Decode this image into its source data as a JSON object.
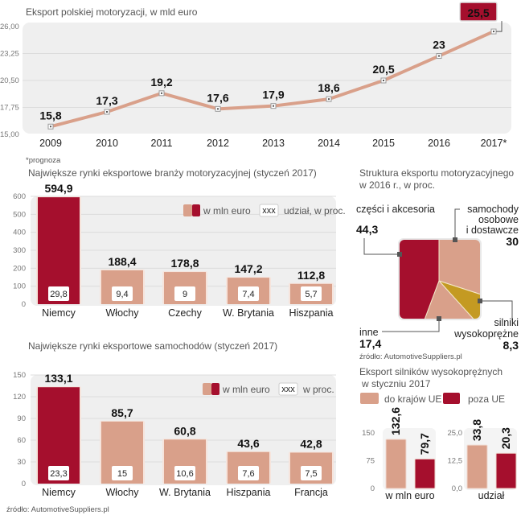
{
  "colors": {
    "dark_red": "#a50f2d",
    "salmon": "#d9a08a",
    "gold": "#c49a22",
    "panel": "#efefef"
  },
  "chart_data": [
    {
      "type": "line",
      "title": "Eksport polskiej motoryzacji, w mld euro",
      "categories": [
        "2009",
        "2010",
        "2011",
        "2012",
        "2013",
        "2014",
        "2015",
        "2016",
        "2017*"
      ],
      "values": [
        15.8,
        17.3,
        19.2,
        17.6,
        17.9,
        18.6,
        20.5,
        23,
        25.5
      ],
      "value_labels": [
        "15,8",
        "17,3",
        "19,2",
        "17,6",
        "17,9",
        "18,6",
        "20,5",
        "23",
        "25,5"
      ],
      "yticks": [
        "15,00",
        "17,75",
        "20,50",
        "23,25",
        "26,00"
      ],
      "ylim": [
        15,
        26
      ],
      "highlight_index": 8,
      "footnote": "*prognoza",
      "grid": true
    },
    {
      "type": "bar",
      "title": "Największe rynki eksportowe branży motoryzacyjnej (styczeń 2017)",
      "categories": [
        "Niemcy",
        "Włochy",
        "Czechy",
        "W. Brytania",
        "Hiszpania"
      ],
      "values": [
        594.9,
        188.4,
        178.8,
        147.2,
        112.8
      ],
      "value_labels": [
        "594,9",
        "188,4",
        "178,8",
        "147,2",
        "112,8"
      ],
      "share_labels": [
        "29,8",
        "9,4",
        "9",
        "7,4",
        "5,7"
      ],
      "yticks": [
        "0",
        "100",
        "200",
        "300",
        "400",
        "500",
        "600"
      ],
      "ylim": [
        0,
        600
      ],
      "legend": {
        "value_label": "w mln euro",
        "box_text": "xxx",
        "share_label": "udział, w proc."
      },
      "legend_position": "top-right",
      "grid": true
    },
    {
      "type": "bar",
      "title": "Największe rynki eksportowe samochodów (styczeń 2017)",
      "categories": [
        "Niemcy",
        "Włochy",
        "W. Brytania",
        "Hiszpania",
        "Francja"
      ],
      "values": [
        133.1,
        85.7,
        60.8,
        43.6,
        42.8
      ],
      "value_labels": [
        "133,1",
        "85,7",
        "60,8",
        "43,6",
        "42,8"
      ],
      "share_labels": [
        "23,3",
        "15",
        "10,6",
        "7,6",
        "7,5"
      ],
      "yticks": [
        "0",
        "30",
        "60",
        "90",
        "120",
        "150"
      ],
      "ylim": [
        0,
        150
      ],
      "legend": {
        "value_label": "w mln euro",
        "box_text": "xxx",
        "share_label": "w proc."
      },
      "legend_position": "top-right",
      "grid": true,
      "source": "źródło: AutomotiveSuppliers.pl"
    },
    {
      "type": "pie",
      "title_lines": [
        "Struktura eksportu motoryzacyjnego",
        "w 2016 r., w proc."
      ],
      "slices": [
        {
          "label_lines": [
            "samochody",
            "osobowe",
            "i dostawcze"
          ],
          "value": 30,
          "value_label": "30",
          "color": "#d9a08a"
        },
        {
          "label_lines": [
            "silniki",
            "wysokoprężne"
          ],
          "value": 8.3,
          "value_label": "8,3",
          "color": "#c49a22"
        },
        {
          "label_lines": [
            "inne"
          ],
          "value": 17.4,
          "value_label": "17,4",
          "color": "#d9a08a"
        },
        {
          "label_lines": [
            "części i akcesoria"
          ],
          "value": 44.3,
          "value_label": "44,3",
          "color": "#a50f2d"
        }
      ],
      "source": "źródło: AutomotiveSuppliers.pl"
    },
    {
      "type": "bar",
      "title_lines": [
        "Eksport silników wysokoprężnych",
        "w styczniu 2017"
      ],
      "legend": [
        "do krajów UE",
        "poza UE"
      ],
      "legend_position": "top",
      "panels": [
        {
          "xlabel": "w mln euro",
          "yticks": [
            "0",
            "75",
            "150"
          ],
          "ylim": [
            0,
            150
          ],
          "values": [
            132.6,
            79.7
          ],
          "value_labels": [
            "132,6",
            "79,7"
          ]
        },
        {
          "xlabel": "udział",
          "yticks": [
            "0,0",
            "12,5",
            "25,0"
          ],
          "ylim": [
            0,
            25
          ],
          "values": [
            33.8,
            20.3
          ],
          "value_labels": [
            "33,8",
            "20,3"
          ]
        }
      ]
    }
  ]
}
